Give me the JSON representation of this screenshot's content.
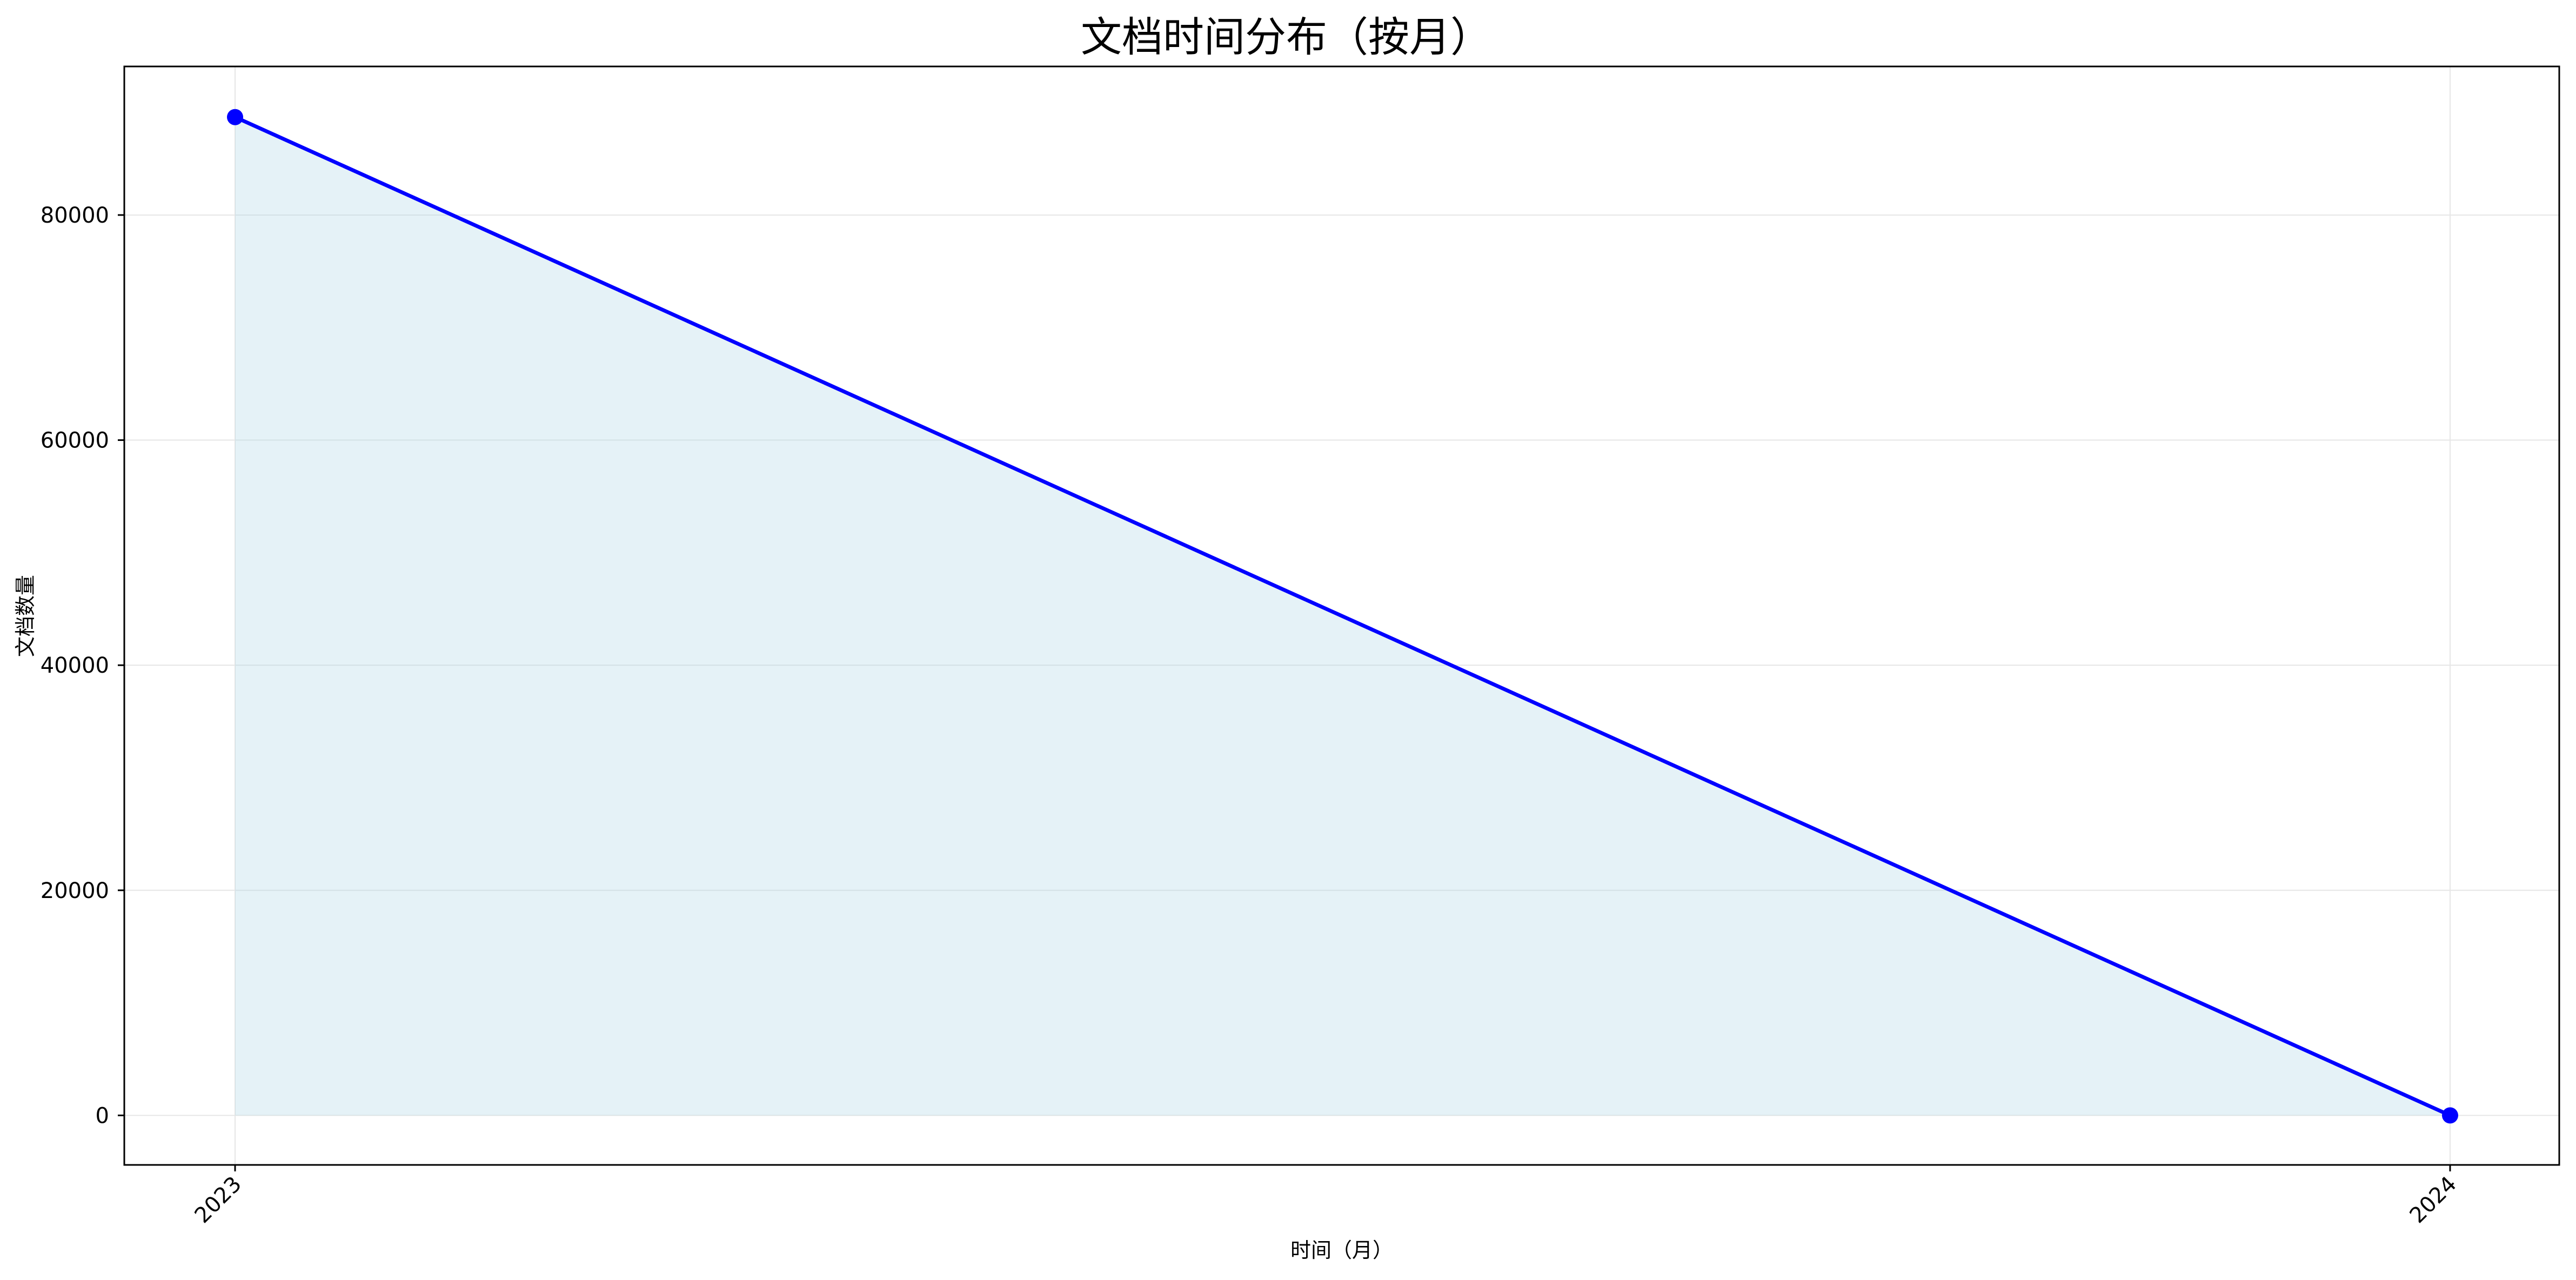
{
  "chart_data": {
    "type": "area",
    "title": "文档时间分布（按月）",
    "xlabel": "时间（月）",
    "ylabel": "文档数量",
    "categories": [
      "2023",
      "2024"
    ],
    "series": [
      {
        "values": [
          88700,
          0
        ]
      }
    ],
    "ylim": [
      -4400,
      93200
    ],
    "yticks": [
      0,
      20000,
      40000,
      60000,
      80000
    ],
    "ytick_labels": [
      "0",
      "20000",
      "40000",
      "60000",
      "80000"
    ],
    "grid": true,
    "line_color": "#0000ff",
    "fill_color": "#add8e6",
    "grid_color": "#e6e6e6"
  }
}
